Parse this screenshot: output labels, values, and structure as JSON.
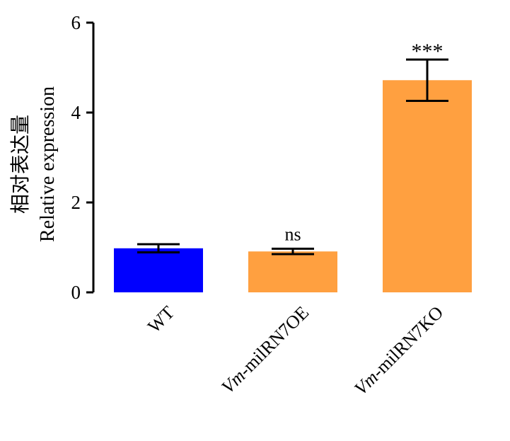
{
  "chart_data": {
    "type": "bar",
    "ylabel": [
      "相对表达量",
      "Relative expression"
    ],
    "xlabel": "",
    "ylim": [
      0,
      6
    ],
    "yticks": [
      0,
      2,
      4,
      6
    ],
    "categories": [
      {
        "prefix": "",
        "suffix": "WT"
      },
      {
        "prefix": "Vm",
        "suffix": "-milRN7OE"
      },
      {
        "prefix": "Vm",
        "suffix": "-milRN7KO"
      }
    ],
    "values": [
      0.98,
      0.91,
      4.72
    ],
    "error": [
      0.09,
      0.06,
      0.46
    ],
    "significance": [
      "",
      "ns",
      "***"
    ],
    "colors": [
      "#0000ff",
      "#ffa040",
      "#ffa040"
    ],
    "grid": false,
    "legend": "none"
  }
}
